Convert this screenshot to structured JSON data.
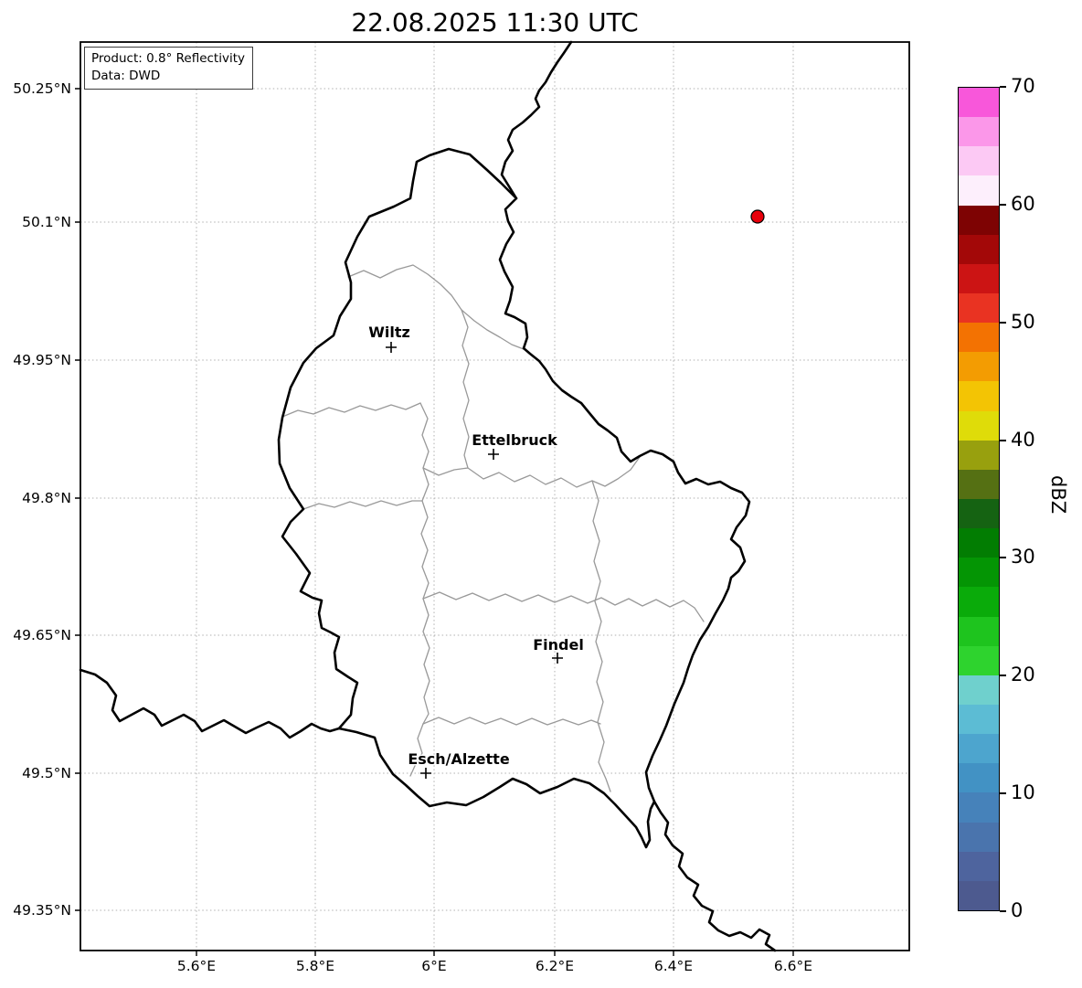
{
  "title": "22.08.2025 11:30 UTC",
  "annotation": {
    "product": "Product: 0.8° Reflectivity",
    "source": "Data: DWD"
  },
  "axes": {
    "lat_ticks": [
      "50.25°N",
      "50.1°N",
      "49.95°N",
      "49.8°N",
      "49.65°N",
      "49.5°N",
      "49.35°N"
    ],
    "lon_ticks": [
      "5.6°E",
      "5.8°E",
      "6°E",
      "6.2°E",
      "6.4°E",
      "6.6°E"
    ]
  },
  "map": {
    "cities": [
      {
        "name": "Wiltz"
      },
      {
        "name": "Ettelbruck"
      },
      {
        "name": "Findel"
      },
      {
        "name": "Esch/Alzette"
      }
    ],
    "radar_dot_color": "#e8000b",
    "border_color": "#000000",
    "district_border_color": "#999999"
  },
  "colorbar": {
    "label": "dBZ",
    "range": [
      0,
      70
    ],
    "tick_labels_top_to_bottom": [
      "70",
      "60",
      "50",
      "40",
      "30",
      "20",
      "10",
      "0"
    ],
    "colors_bottom_to_top": [
      "#4d5a8f",
      "#4e649e",
      "#4a74ad",
      "#4682ba",
      "#4292c4",
      "#4da5ce",
      "#5cbcd4",
      "#6fd0cd",
      "#2ed32e",
      "#1ec41e",
      "#0aab0a",
      "#049504",
      "#027d02",
      "#156312",
      "#557013",
      "#98a00e",
      "#dfdc09",
      "#f3c404",
      "#f39c02",
      "#f37202",
      "#e93322",
      "#cc1414",
      "#a30808",
      "#7e0303",
      "#fdeffc",
      "#fcc9f4",
      "#fb97e9",
      "#f857da"
    ]
  }
}
